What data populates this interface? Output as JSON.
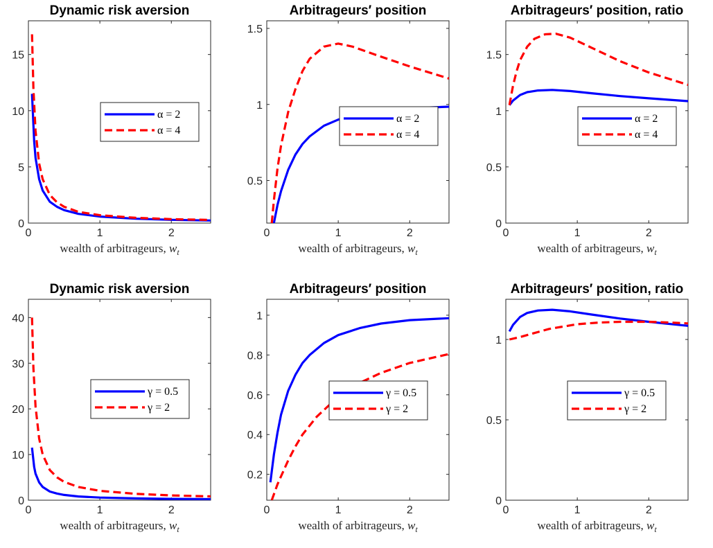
{
  "chart_data": [
    {
      "type": "line",
      "title": "Dynamic risk aversion",
      "xlabel": "wealth of arbitrageurs, w_t",
      "xlim": [
        0,
        2.55
      ],
      "ylim": [
        0,
        18
      ],
      "xticks": [
        0,
        1,
        2
      ],
      "xtick_labels": [
        "0",
        "1",
        "2"
      ],
      "yticks": [
        0,
        5,
        10,
        15
      ],
      "ytick_labels": [
        "0",
        "5",
        "10",
        "15"
      ],
      "legend_position": "center-right",
      "series": [
        {
          "name": "α = 2",
          "color": "#0000ff",
          "style": "solid",
          "x": [
            0.05,
            0.08,
            0.1,
            0.15,
            0.2,
            0.3,
            0.4,
            0.5,
            0.7,
            1.0,
            1.5,
            2.0,
            2.55
          ],
          "y": [
            11.5,
            7.3,
            5.8,
            3.9,
            2.9,
            1.9,
            1.45,
            1.15,
            0.82,
            0.58,
            0.39,
            0.29,
            0.23
          ]
        },
        {
          "name": "α = 4",
          "color": "#ff0000",
          "style": "dashed",
          "x": [
            0.05,
            0.07,
            0.1,
            0.15,
            0.2,
            0.3,
            0.4,
            0.5,
            0.7,
            1.0,
            1.5,
            2.0,
            2.55
          ],
          "y": [
            16.8,
            12.0,
            8.2,
            5.3,
            3.9,
            2.5,
            1.85,
            1.45,
            1.0,
            0.7,
            0.47,
            0.35,
            0.28
          ]
        }
      ]
    },
    {
      "type": "line",
      "title": "Arbitrageurs′ position",
      "xlabel": "wealth of arbitrageurs, w_t",
      "xlim": [
        0,
        2.55
      ],
      "ylim": [
        0.22,
        1.55
      ],
      "xticks": [
        0,
        1,
        2
      ],
      "xtick_labels": [
        "0",
        "1",
        "2"
      ],
      "yticks": [
        0.5,
        1,
        1.5
      ],
      "ytick_labels": [
        "0.5",
        "1",
        "1.5"
      ],
      "legend_position": "center-right",
      "series": [
        {
          "name": "α = 2",
          "color": "#0000ff",
          "style": "solid",
          "x": [
            0.1,
            0.15,
            0.2,
            0.3,
            0.4,
            0.5,
            0.6,
            0.8,
            1.0,
            1.3,
            1.6,
            2.0,
            2.55
          ],
          "y": [
            0.22,
            0.34,
            0.43,
            0.57,
            0.67,
            0.74,
            0.79,
            0.86,
            0.9,
            0.94,
            0.96,
            0.975,
            0.985
          ]
        },
        {
          "name": "α = 4",
          "color": "#ff0000",
          "style": "dashed",
          "x": [
            0.07,
            0.1,
            0.15,
            0.2,
            0.3,
            0.4,
            0.5,
            0.6,
            0.8,
            1.0,
            1.2,
            1.5,
            2.0,
            2.55
          ],
          "y": [
            0.22,
            0.37,
            0.58,
            0.73,
            0.95,
            1.1,
            1.22,
            1.3,
            1.38,
            1.4,
            1.38,
            1.33,
            1.25,
            1.17
          ]
        }
      ]
    },
    {
      "type": "line",
      "title": "Arbitrageurs′ position, ratio",
      "xlabel": "wealth of arbitrageurs, w_t",
      "xlim": [
        0,
        2.55
      ],
      "ylim": [
        0,
        1.8
      ],
      "xticks": [
        0,
        1,
        2
      ],
      "xtick_labels": [
        "0",
        "1",
        "2"
      ],
      "yticks": [
        0,
        0.5,
        1,
        1.5
      ],
      "ytick_labels": [
        "0",
        "0.5",
        "1",
        "1.5"
      ],
      "legend_position": "center-right",
      "series": [
        {
          "name": "α = 2",
          "color": "#0000ff",
          "style": "solid",
          "x": [
            0.05,
            0.1,
            0.2,
            0.3,
            0.45,
            0.65,
            0.9,
            1.2,
            1.6,
            2.0,
            2.55
          ],
          "y": [
            1.05,
            1.09,
            1.14,
            1.165,
            1.18,
            1.185,
            1.175,
            1.155,
            1.13,
            1.11,
            1.085
          ]
        },
        {
          "name": "α = 4",
          "color": "#ff0000",
          "style": "dashed",
          "x": [
            0.05,
            0.1,
            0.15,
            0.2,
            0.3,
            0.4,
            0.55,
            0.7,
            0.9,
            1.2,
            1.6,
            2.0,
            2.55
          ],
          "y": [
            1.05,
            1.22,
            1.35,
            1.45,
            1.57,
            1.64,
            1.68,
            1.685,
            1.65,
            1.56,
            1.44,
            1.34,
            1.23
          ]
        }
      ]
    },
    {
      "type": "line",
      "title": "Dynamic risk aversion",
      "xlabel": "wealth of arbitrageurs, w_t",
      "xlim": [
        0,
        2.55
      ],
      "ylim": [
        0,
        44
      ],
      "xticks": [
        0,
        1,
        2
      ],
      "xtick_labels": [
        "0",
        "1",
        "2"
      ],
      "yticks": [
        0,
        10,
        20,
        30,
        40
      ],
      "ytick_labels": [
        "0",
        "10",
        "20",
        "30",
        "40"
      ],
      "legend_position": "center-right",
      "series": [
        {
          "name": "γ = 0.5",
          "color": "#0000ff",
          "style": "solid",
          "x": [
            0.05,
            0.08,
            0.1,
            0.15,
            0.2,
            0.3,
            0.4,
            0.5,
            0.7,
            1.0,
            1.5,
            2.0,
            2.55
          ],
          "y": [
            11.5,
            7.3,
            5.8,
            3.9,
            2.9,
            1.9,
            1.45,
            1.15,
            0.82,
            0.58,
            0.39,
            0.29,
            0.23
          ]
        },
        {
          "name": "γ = 2",
          "color": "#ff0000",
          "style": "dashed",
          "x": [
            0.05,
            0.07,
            0.1,
            0.15,
            0.2,
            0.3,
            0.4,
            0.5,
            0.7,
            1.0,
            1.5,
            2.0,
            2.55
          ],
          "y": [
            40,
            29,
            20.5,
            13.5,
            10,
            6.6,
            5.0,
            4.0,
            2.9,
            2.05,
            1.4,
            1.05,
            0.83
          ]
        }
      ]
    },
    {
      "type": "line",
      "title": "Arbitrageurs′ position",
      "xlabel": "wealth of arbitrageurs, w_t",
      "xlim": [
        0,
        2.55
      ],
      "ylim": [
        0.07,
        1.08
      ],
      "xticks": [
        0,
        1,
        2
      ],
      "xtick_labels": [
        "0",
        "1",
        "2"
      ],
      "yticks": [
        0.2,
        0.4,
        0.6,
        0.8,
        1
      ],
      "ytick_labels": [
        "0.2",
        "0.4",
        "0.6",
        "0.8",
        "1"
      ],
      "legend_position": "center-right",
      "series": [
        {
          "name": "γ = 0.5",
          "color": "#0000ff",
          "style": "solid",
          "x": [
            0.05,
            0.1,
            0.15,
            0.2,
            0.3,
            0.4,
            0.5,
            0.6,
            0.8,
            1.0,
            1.3,
            1.6,
            2.0,
            2.55
          ],
          "y": [
            0.16,
            0.3,
            0.41,
            0.5,
            0.62,
            0.7,
            0.76,
            0.8,
            0.86,
            0.9,
            0.935,
            0.958,
            0.975,
            0.985
          ]
        },
        {
          "name": "γ = 2",
          "color": "#ff0000",
          "style": "dashed",
          "x": [
            0.07,
            0.1,
            0.15,
            0.2,
            0.3,
            0.4,
            0.5,
            0.7,
            1.0,
            1.3,
            1.6,
            2.0,
            2.55
          ],
          "y": [
            0.07,
            0.1,
            0.15,
            0.19,
            0.27,
            0.34,
            0.4,
            0.49,
            0.59,
            0.66,
            0.71,
            0.76,
            0.805
          ]
        }
      ]
    },
    {
      "type": "line",
      "title": "Arbitrageurs′ position, ratio",
      "xlabel": "wealth of arbitrageurs, w_t",
      "xlim": [
        0,
        2.55
      ],
      "ylim": [
        0,
        1.25
      ],
      "xticks": [
        0,
        1,
        2
      ],
      "xtick_labels": [
        "0",
        "1",
        "2"
      ],
      "yticks": [
        0,
        0.5,
        1
      ],
      "ytick_labels": [
        "0",
        "0.5",
        "1"
      ],
      "legend_position": "center-right",
      "series": [
        {
          "name": "γ = 0.5",
          "color": "#0000ff",
          "style": "solid",
          "x": [
            0.05,
            0.1,
            0.2,
            0.3,
            0.45,
            0.65,
            0.9,
            1.2,
            1.6,
            2.0,
            2.55
          ],
          "y": [
            1.05,
            1.09,
            1.14,
            1.165,
            1.18,
            1.185,
            1.175,
            1.155,
            1.13,
            1.11,
            1.085
          ]
        },
        {
          "name": "γ = 2",
          "color": "#ff0000",
          "style": "dashed",
          "x": [
            0.05,
            0.2,
            0.4,
            0.6,
            0.8,
            1.0,
            1.3,
            1.6,
            2.0,
            2.3,
            2.55
          ],
          "y": [
            1.0,
            1.015,
            1.04,
            1.065,
            1.08,
            1.095,
            1.105,
            1.11,
            1.11,
            1.105,
            1.1
          ]
        }
      ]
    }
  ]
}
